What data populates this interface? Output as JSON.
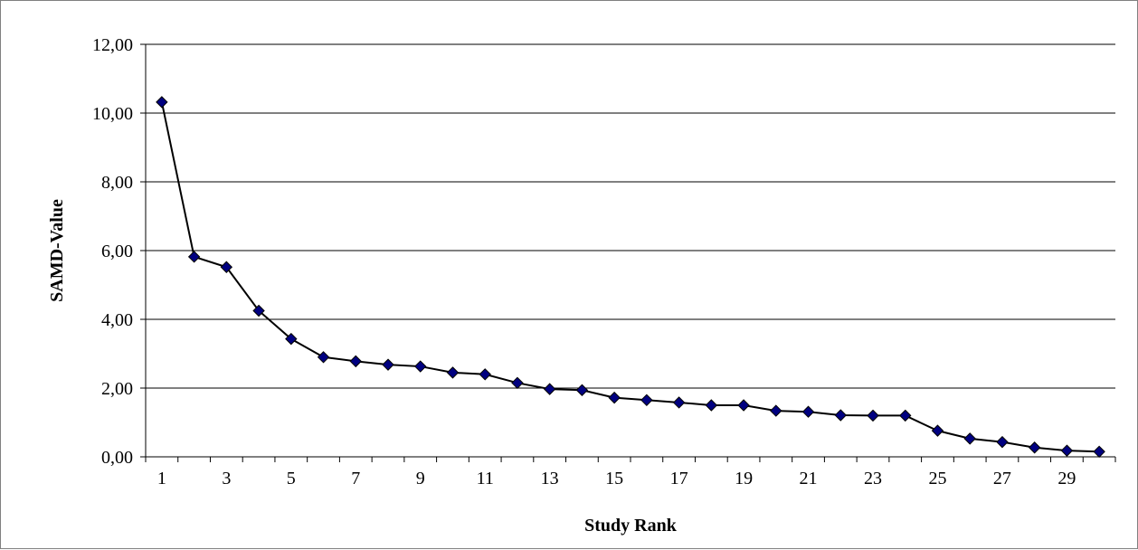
{
  "chart_data": {
    "type": "line",
    "title": "",
    "xlabel": "Study Rank",
    "ylabel": "SAMD-Value",
    "x": [
      1,
      2,
      3,
      4,
      5,
      6,
      7,
      8,
      9,
      10,
      11,
      12,
      13,
      14,
      15,
      16,
      17,
      18,
      19,
      20,
      21,
      22,
      23,
      24,
      25,
      26,
      27,
      28,
      29,
      30
    ],
    "x_tick_labels": [
      "1",
      "3",
      "5",
      "7",
      "9",
      "11",
      "13",
      "15",
      "17",
      "19",
      "21",
      "23",
      "25",
      "27",
      "29"
    ],
    "y_tick_labels": [
      "0,00",
      "2,00",
      "4,00",
      "6,00",
      "8,00",
      "10,00",
      "12,00"
    ],
    "ylim": [
      0,
      12
    ],
    "grid": "horizontal",
    "series": [
      {
        "values": [
          10.32,
          5.82,
          5.52,
          4.25,
          3.43,
          2.9,
          2.78,
          2.68,
          2.63,
          2.45,
          2.4,
          2.15,
          1.97,
          1.94,
          1.72,
          1.65,
          1.58,
          1.5,
          1.5,
          1.34,
          1.31,
          1.21,
          1.2,
          1.2,
          0.76,
          0.53,
          0.43,
          0.27,
          0.18,
          0.15
        ],
        "line_color": "#000000",
        "marker_color": "#000080",
        "marker": "diamond"
      }
    ]
  }
}
